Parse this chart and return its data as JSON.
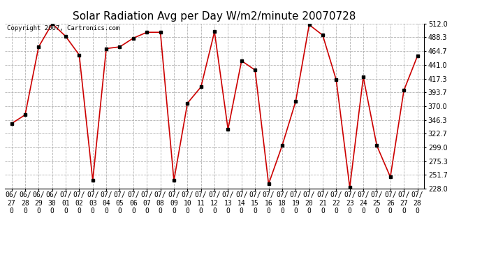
{
  "title": "Solar Radiation Avg per Day W/m2/minute 20070728",
  "copyright_text": "Copyright 2007, Cartronics.com",
  "dates": [
    "06/27",
    "06/28",
    "06/29",
    "06/30",
    "07/01",
    "07/02",
    "07/03",
    "07/04",
    "07/05",
    "07/06",
    "07/07",
    "07/08",
    "07/09",
    "07/10",
    "07/11",
    "07/12",
    "07/13",
    "07/14",
    "07/15",
    "07/16",
    "07/18",
    "07/19",
    "07/20",
    "07/21",
    "07/22",
    "07/23",
    "07/24",
    "07/25",
    "07/26",
    "07/27",
    "07/28"
  ],
  "values": [
    340.0,
    355.0,
    472.0,
    512.0,
    490.0,
    458.0,
    242.0,
    469.0,
    472.0,
    487.0,
    497.0,
    497.0,
    242.0,
    375.0,
    403.0,
    498.0,
    330.0,
    448.0,
    432.0,
    236.0,
    302.0,
    378.0,
    510.0,
    492.0,
    415.0,
    230.0,
    420.0,
    302.0,
    248.0,
    397.0,
    456.0
  ],
  "ylim": [
    228.0,
    512.0
  ],
  "yticks": [
    228.0,
    251.7,
    275.3,
    299.0,
    322.7,
    346.3,
    370.0,
    393.7,
    417.3,
    441.0,
    464.7,
    488.3,
    512.0
  ],
  "line_color": "#cc0000",
  "marker_color": "#000000",
  "bg_color": "#ffffff",
  "grid_color": "#aaaaaa",
  "title_fontsize": 11,
  "label_fontsize": 7,
  "copyright_fontsize": 6.5
}
